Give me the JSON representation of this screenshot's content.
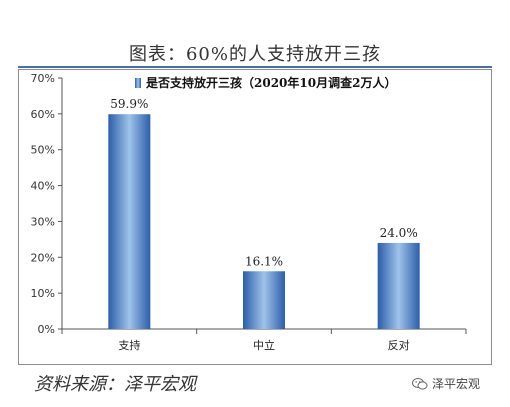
{
  "header": {
    "title": "图表：60%的人支持放开三孩"
  },
  "footer": {
    "source": "资料来源：泽平宏观",
    "brand": "泽平宏观",
    "brand_icon": "wechat-icon"
  },
  "colors": {
    "bar": "#3a6fb8",
    "bar_light": "#8fb4e3",
    "title_rule": "#4a6fa5"
  },
  "chart_data": {
    "type": "bar",
    "title": "",
    "xlabel": "",
    "ylabel": "",
    "categories": [
      "支持",
      "中立",
      "反对"
    ],
    "series": [
      {
        "name": "是否支持放开三孩（2020年10月调查2万人）",
        "values": [
          59.9,
          16.1,
          24.0
        ],
        "labels": [
          "59.9%",
          "16.1%",
          "24.0%"
        ]
      }
    ],
    "ylim": [
      0,
      70
    ],
    "yticks": [
      "0%",
      "10%",
      "20%",
      "30%",
      "40%",
      "50%",
      "60%",
      "70%"
    ],
    "grid": false,
    "legend": "top-center"
  }
}
